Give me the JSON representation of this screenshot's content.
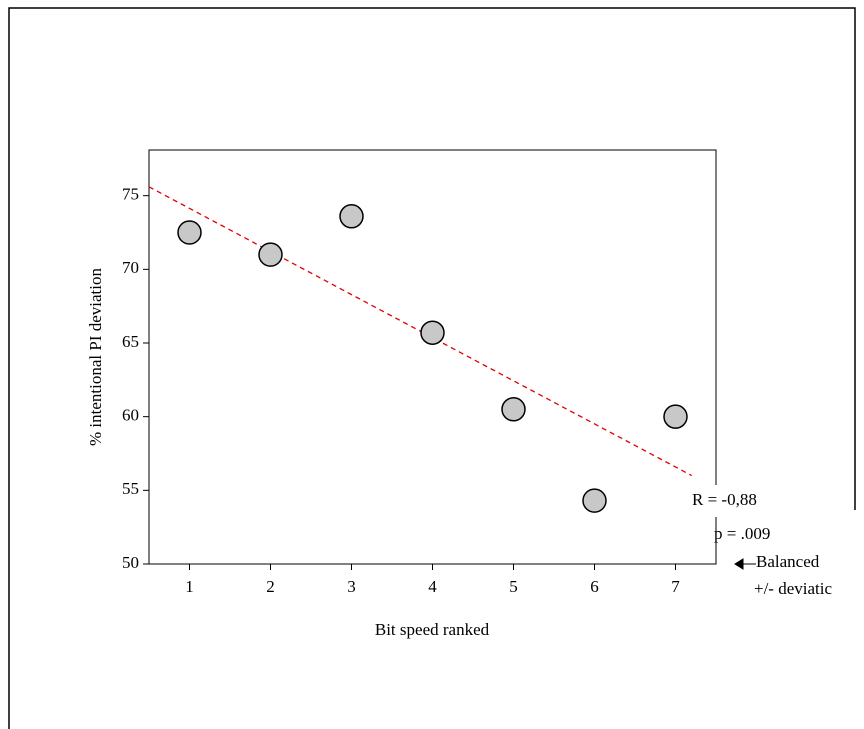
{
  "chart_data": {
    "type": "scatter",
    "x_label": "Bit speed ranked",
    "y_label": "% intentional PI deviation",
    "x": [
      1,
      2,
      3,
      4,
      5,
      6,
      7
    ],
    "values": [
      72.5,
      71,
      73.6,
      65.7,
      60.5,
      54.3,
      60
    ],
    "color": "#c8c8c8",
    "fit_line": {
      "x": [
        0.5,
        7.2
      ],
      "y": [
        75.6,
        56.0
      ],
      "color": "#e00000"
    },
    "xlim": [
      0.5,
      7.5
    ],
    "xticks": [
      1,
      2,
      3,
      4,
      5,
      6,
      7
    ],
    "ylim": [
      50,
      78.1
    ],
    "yticks": [
      50,
      55,
      60,
      65,
      70,
      75
    ],
    "annotations": [
      "R = -0,88",
      "p = .009",
      "Balanced",
      "+/- deviatic"
    ]
  }
}
